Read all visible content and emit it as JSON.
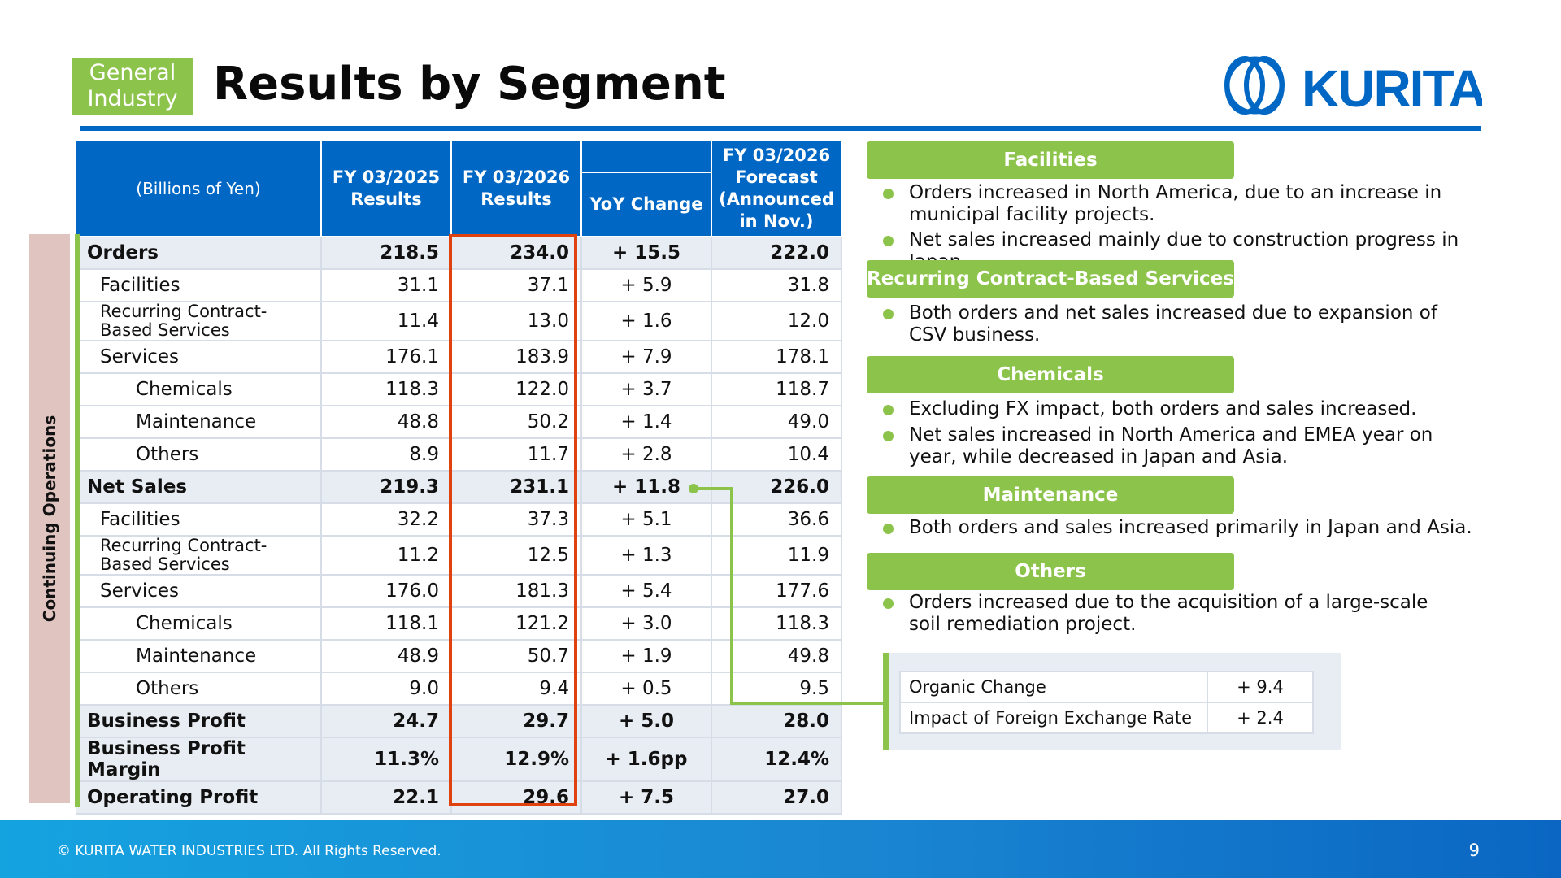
{
  "header": {
    "tag_line1": "General",
    "tag_line2": "Industry",
    "title": "Results by Segment",
    "logo_text": "KURITA"
  },
  "side_label": "Continuing Operations",
  "table": {
    "unit": "(Billions of Yen)",
    "col1": "FY 03/2025\nResults",
    "col2": "FY 03/2026\nResults",
    "col3": "YoY Change",
    "col4": "FY 03/2026\nForecast\n(Announced\nin Nov.)",
    "rows": [
      {
        "label": "Orders",
        "v1": "218.5",
        "v2": "234.0",
        "yoy": "+ 15.5",
        "f": "222.0"
      },
      {
        "label": "Facilities",
        "v1": "31.1",
        "v2": "37.1",
        "yoy": "+ 5.9",
        "f": "31.8"
      },
      {
        "label": "Recurring Contract-\nBased Services",
        "v1": "11.4",
        "v2": "13.0",
        "yoy": "+ 1.6",
        "f": "12.0"
      },
      {
        "label": "Services",
        "v1": "176.1",
        "v2": "183.9",
        "yoy": "+ 7.9",
        "f": "178.1"
      },
      {
        "label": "Chemicals",
        "v1": "118.3",
        "v2": "122.0",
        "yoy": "+ 3.7",
        "f": "118.7"
      },
      {
        "label": "Maintenance",
        "v1": "48.8",
        "v2": "50.2",
        "yoy": "+ 1.4",
        "f": "49.0"
      },
      {
        "label": "Others",
        "v1": "8.9",
        "v2": "11.7",
        "yoy": "+ 2.8",
        "f": "10.4"
      },
      {
        "label": "Net Sales",
        "v1": "219.3",
        "v2": "231.1",
        "yoy": "+ 11.8",
        "f": "226.0"
      },
      {
        "label": "Facilities",
        "v1": "32.2",
        "v2": "37.3",
        "yoy": "+ 5.1",
        "f": "36.6"
      },
      {
        "label": "Recurring Contract-\nBased Services",
        "v1": "11.2",
        "v2": "12.5",
        "yoy": "+ 1.3",
        "f": "11.9"
      },
      {
        "label": "Services",
        "v1": "176.0",
        "v2": "181.3",
        "yoy": "+ 5.4",
        "f": "177.6"
      },
      {
        "label": "Chemicals",
        "v1": "118.1",
        "v2": "121.2",
        "yoy": "+ 3.0",
        "f": "118.3"
      },
      {
        "label": "Maintenance",
        "v1": "48.9",
        "v2": "50.7",
        "yoy": "+ 1.9",
        "f": "49.8"
      },
      {
        "label": "Others",
        "v1": "9.0",
        "v2": "9.4",
        "yoy": "+ 0.5",
        "f": "9.5"
      },
      {
        "label": "Business Profit",
        "v1": "24.7",
        "v2": "29.7",
        "yoy": "+ 5.0",
        "f": "28.0"
      },
      {
        "label": "Business Profit Margin",
        "v1": "11.3%",
        "v2": "12.9%",
        "yoy": "+ 1.6pp",
        "f": "12.4%"
      },
      {
        "label": "Operating Profit",
        "v1": "22.1",
        "v2": "29.6",
        "yoy": "+ 7.5",
        "f": "27.0"
      }
    ]
  },
  "panels": {
    "facilities": {
      "title": "Facilities",
      "b1": "Orders increased in North America, due to an increase in municipal facility projects.",
      "b2": "Net sales increased mainly due to construction progress in Japan."
    },
    "recurring": {
      "title": "Recurring Contract-Based Services",
      "b1": "Both orders and net sales increased due to expansion of CSV business."
    },
    "chemicals": {
      "title": "Chemicals",
      "b1": "Excluding FX impact, both orders and sales increased.",
      "b2": "Net sales increased in North America and EMEA year on year, while decreased in Japan and Asia."
    },
    "maintenance": {
      "title": "Maintenance",
      "b1": "Both orders and sales increased primarily in Japan and Asia."
    },
    "others": {
      "title": "Others",
      "b1": "Orders increased due to the acquisition of a large-scale soil remediation project."
    }
  },
  "fx_breakdown": {
    "organic_label": "Organic Change",
    "organic_value": "+ 9.4",
    "fx_label": "Impact of Foreign Exchange Rate",
    "fx_value": "+ 2.4"
  },
  "footer": {
    "copyright": "© KURITA WATER INDUSTRIES LTD. All Rights Reserved.",
    "page_number": "9"
  },
  "colors": {
    "brand_blue": "#0068c4",
    "accent_green": "#8cc34a",
    "highlight_red": "#e0420f",
    "band_pink": "#e0c4c0"
  }
}
